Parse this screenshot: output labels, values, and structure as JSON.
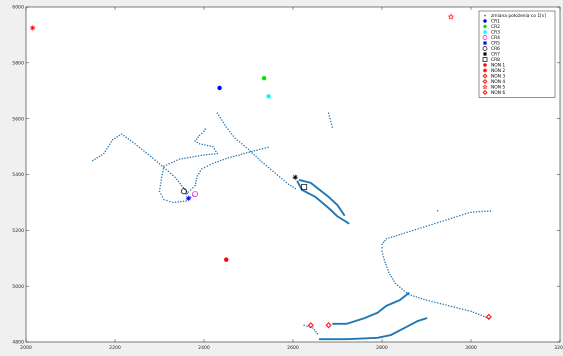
{
  "chart_data": {
    "type": "scatter",
    "title": "",
    "xlabel": "",
    "ylabel": "",
    "xlim": [
      2000,
      3200
    ],
    "ylim": [
      4800,
      6000
    ],
    "grid": false,
    "legend_placement": "top-right",
    "x_ticks": [
      "2000",
      "2200",
      "2400",
      "2600",
      "2800",
      "3000",
      "3200"
    ],
    "y_ticks": [
      "4800",
      "5000",
      "5200",
      "5400",
      "5600",
      "5800",
      "6000"
    ],
    "colors": {
      "path": "#1f77b4",
      "blue": "#0000e6",
      "green": "#00e600",
      "cyan": "#00ffff",
      "magenta": "#ff00ff",
      "black": "#000000",
      "red": "#ff0000"
    },
    "legend": [
      {
        "label": "zmiana położenia co 1[s]",
        "marker": "dot",
        "color": "#1f77b4"
      },
      {
        "label": "CR1",
        "marker": "filled-circle",
        "color": "#0000e6"
      },
      {
        "label": "CR2",
        "marker": "filled-circle",
        "color": "#00e600"
      },
      {
        "label": "CR3",
        "marker": "filled-circle",
        "color": "#00ffff"
      },
      {
        "label": "CR4",
        "marker": "open-circle",
        "color": "#ff00ff"
      },
      {
        "label": "CR5",
        "marker": "star",
        "color": "#0000e6"
      },
      {
        "label": "CR6",
        "marker": "open-circle",
        "color": "#000000"
      },
      {
        "label": "CR7",
        "marker": "asterisk",
        "color": "#000000"
      },
      {
        "label": "CR8",
        "marker": "square",
        "color": "#000000"
      },
      {
        "label": "NON 1",
        "marker": "filled-circle",
        "color": "#ff0000"
      },
      {
        "label": "NON 2",
        "marker": "asterisk",
        "color": "#ff0000"
      },
      {
        "label": "NON 3",
        "marker": "diamond",
        "color": "#ff0000"
      },
      {
        "label": "NON 4",
        "marker": "diamond",
        "color": "#ff0000"
      },
      {
        "label": "NON 5",
        "marker": "hexagram",
        "color": "#ff0000"
      },
      {
        "label": "NON 6",
        "marker": "diamond",
        "color": "#ff0000"
      }
    ],
    "series": [
      {
        "name": "zmiana położenia co 1[s]",
        "paths": [
          [
            [
              2150,
              5450
            ],
            [
              2175,
              5475
            ],
            [
              2195,
              5525
            ],
            [
              2215,
              5545
            ],
            [
              2245,
              5510
            ],
            [
              2280,
              5465
            ],
            [
              2310,
              5425
            ],
            [
              2335,
              5390
            ],
            [
              2350,
              5360
            ],
            [
              2360,
              5340
            ],
            [
              2365,
              5325
            ]
          ],
          [
            [
              2375,
              5325
            ],
            [
              2360,
              5305
            ],
            [
              2330,
              5300
            ],
            [
              2310,
              5310
            ],
            [
              2300,
              5340
            ],
            [
              2305,
              5390
            ],
            [
              2310,
              5430
            ],
            [
              2345,
              5455
            ],
            [
              2400,
              5470
            ],
            [
              2430,
              5475
            ],
            [
              2420,
              5500
            ],
            [
              2390,
              5510
            ],
            [
              2380,
              5520
            ],
            [
              2390,
              5540
            ],
            [
              2400,
              5555
            ],
            [
              2405,
              5570
            ]
          ],
          [
            [
              2430,
              5620
            ],
            [
              2450,
              5570
            ],
            [
              2470,
              5530
            ],
            [
              2500,
              5490
            ],
            [
              2530,
              5445
            ],
            [
              2560,
              5405
            ],
            [
              2590,
              5365
            ],
            [
              2610,
              5345
            ]
          ],
          [
            [
              2360,
              5330
            ],
            [
              2380,
              5360
            ],
            [
              2385,
              5395
            ],
            [
              2395,
              5420
            ],
            [
              2420,
              5440
            ],
            [
              2455,
              5460
            ],
            [
              2490,
              5475
            ],
            [
              2525,
              5490
            ],
            [
              2550,
              5500
            ]
          ],
          [
            [
              2680,
              5620
            ],
            [
              2690,
              5560
            ]
          ],
          [
            [
              3040,
              4885
            ],
            [
              3000,
              4910
            ],
            [
              2950,
              4930
            ],
            [
              2900,
              4950
            ],
            [
              2860,
              4970
            ],
            [
              2830,
              5010
            ],
            [
              2815,
              5050
            ],
            [
              2805,
              5095
            ],
            [
              2800,
              5125
            ],
            [
              2800,
              5150
            ],
            [
              2810,
              5170
            ],
            [
              2850,
              5190
            ],
            [
              2900,
              5215
            ],
            [
              2950,
              5240
            ],
            [
              3000,
              5265
            ],
            [
              3050,
              5270
            ]
          ],
          [
            [
              2925,
              5270
            ],
            [
              2930,
              5270
            ]
          ],
          [
            [
              2625,
              4860
            ],
            [
              2645,
              4850
            ],
            [
              2655,
              4830
            ],
            [
              2660,
              4820
            ]
          ]
        ]
      },
      {
        "name": "trajectory segments",
        "paths": [
          [
            [
              2615,
              5380
            ],
            [
              2640,
              5370
            ],
            [
              2660,
              5345
            ],
            [
              2680,
              5320
            ],
            [
              2700,
              5290
            ],
            [
              2715,
              5255
            ]
          ],
          [
            [
              2610,
              5375
            ],
            [
              2620,
              5345
            ],
            [
              2650,
              5320
            ],
            [
              2680,
              5280
            ],
            [
              2700,
              5250
            ],
            [
              2725,
              5225
            ]
          ],
          [
            [
              2690,
              4865
            ],
            [
              2720,
              4865
            ],
            [
              2760,
              4885
            ],
            [
              2790,
              4905
            ],
            [
              2810,
              4930
            ],
            [
              2840,
              4950
            ],
            [
              2860,
              4975
            ]
          ],
          [
            [
              2660,
              4810
            ],
            [
              2720,
              4810
            ],
            [
              2790,
              4815
            ],
            [
              2820,
              4825
            ],
            [
              2850,
              4850
            ],
            [
              2880,
              4875
            ],
            [
              2900,
              4885
            ]
          ]
        ]
      },
      {
        "name": "CR1",
        "points": [
          [
            2435,
            5710
          ]
        ]
      },
      {
        "name": "CR2",
        "points": [
          [
            2535,
            5745
          ]
        ]
      },
      {
        "name": "CR3",
        "points": [
          [
            2545,
            5680
          ]
        ]
      },
      {
        "name": "CR4",
        "points": [
          [
            2380,
            5330
          ]
        ]
      },
      {
        "name": "CR5",
        "points": [
          [
            2365,
            5315
          ]
        ]
      },
      {
        "name": "CR6",
        "points": [
          [
            2355,
            5340
          ]
        ]
      },
      {
        "name": "CR7",
        "points": [
          [
            2605,
            5390
          ]
        ]
      },
      {
        "name": "CR8",
        "points": [
          [
            2625,
            5355
          ]
        ]
      },
      {
        "name": "NON 1",
        "points": [
          [
            2450,
            5095
          ]
        ]
      },
      {
        "name": "NON 2",
        "points": [
          [
            2015,
            5925
          ]
        ]
      },
      {
        "name": "NON 3",
        "points": [
          [
            2640,
            4860
          ]
        ]
      },
      {
        "name": "NON 4",
        "points": [
          [
            2680,
            4860
          ]
        ]
      },
      {
        "name": "NON 5",
        "points": [
          [
            2955,
            5965
          ]
        ]
      },
      {
        "name": "NON 6",
        "points": [
          [
            3040,
            4890
          ]
        ]
      }
    ]
  }
}
